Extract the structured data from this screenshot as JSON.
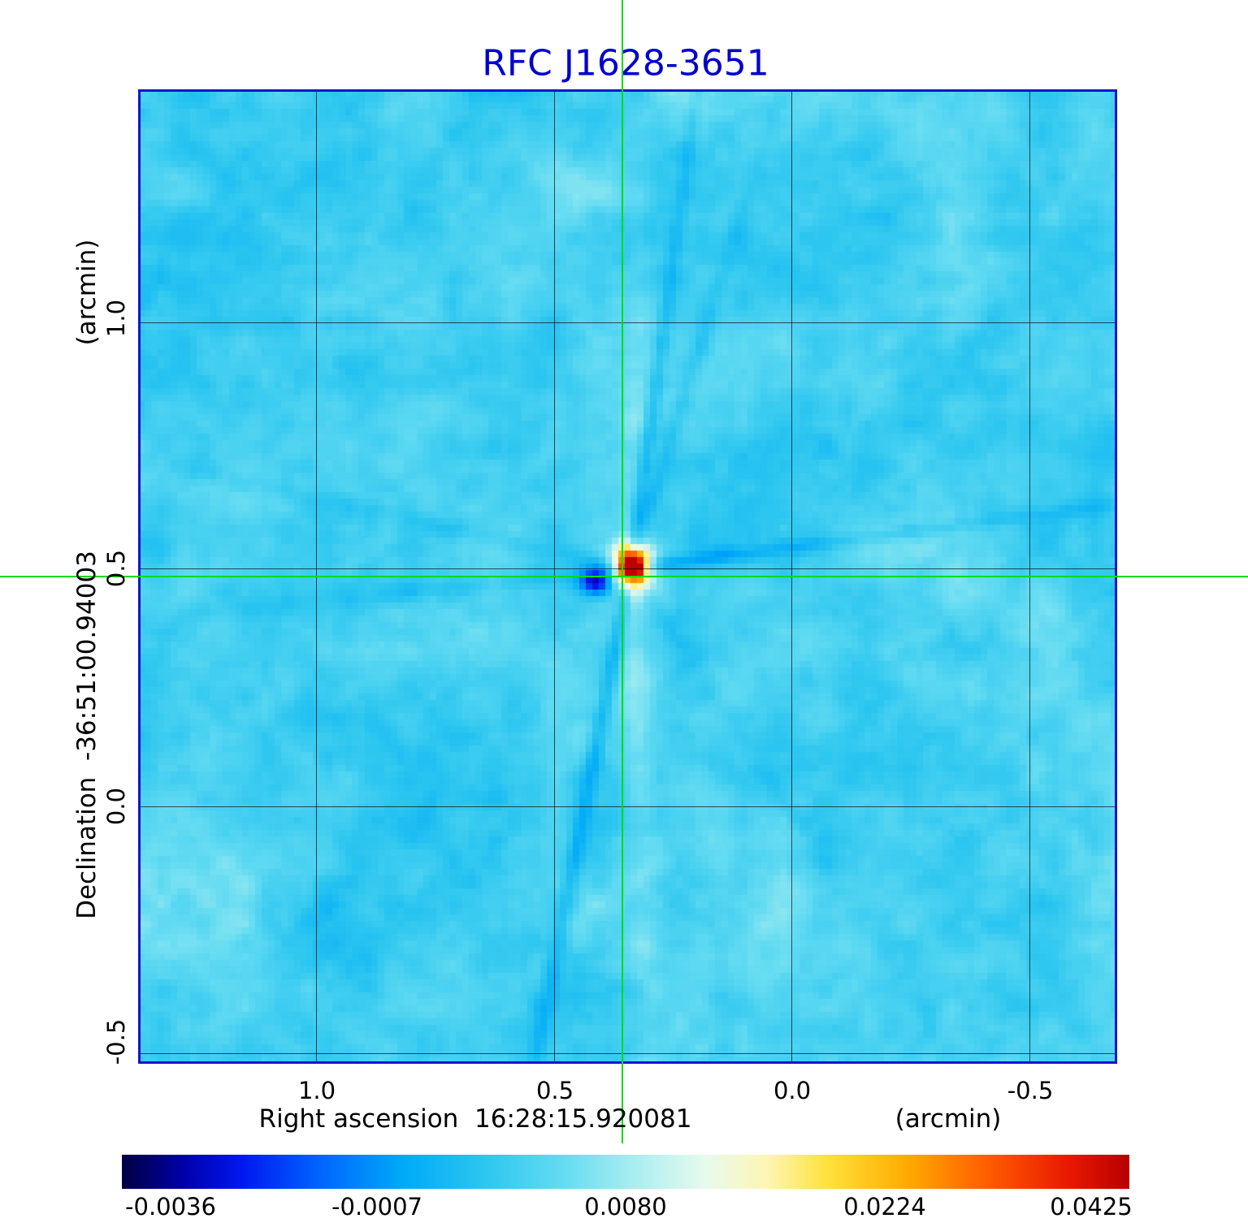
{
  "title": {
    "text": "RFC J1628-3651",
    "color": "#0000cd"
  },
  "axes": {
    "y_unit": "(arcmin)",
    "y_title": "Declination  -36:51:00.94003",
    "y_ticks": [
      "1.0",
      "0.5",
      "0.0",
      "-0.5"
    ],
    "x_title": "Right ascension  16:28:15.920081",
    "x_unit": "(arcmin)",
    "x_ticks": [
      "1.0",
      "0.5",
      "0.0",
      "-0.5"
    ]
  },
  "colorbar": {
    "tick_labels": [
      "-0.0036",
      "-0.0007",
      "0.0080",
      "0.0224",
      "0.0425"
    ]
  },
  "chart_data": {
    "type": "heatmap",
    "title": "RFC J1628-3651",
    "xlabel": "Right ascension 16:28:15.920081 (arcmin)",
    "ylabel": "Declination -36:51:00.94003 (arcmin)",
    "x_ticks_arcmin": [
      1.0,
      0.5,
      0.0,
      -0.5
    ],
    "y_ticks_arcmin": [
      1.0,
      0.5,
      0.0,
      -0.5
    ],
    "x_range_arcmin": [
      1.38,
      -0.68
    ],
    "y_range_arcmin": [
      -0.52,
      1.49
    ],
    "grid": true,
    "crosshair_arcmin": {
      "x": 0.36,
      "y": 0.48
    },
    "intensity_scale": {
      "min": -0.0036,
      "max": 0.0425,
      "colorbar_ticks": [
        -0.0036,
        -0.0007,
        0.008,
        0.0224,
        0.0425
      ]
    },
    "features": {
      "peak_source": {
        "x_arcmin": 0.35,
        "y_arcmin": 0.5,
        "value": 0.0425
      },
      "negative_sidelobe": {
        "x_arcmin": 0.42,
        "y_arcmin": 0.46,
        "value": -0.0036
      },
      "background_level": 0.0,
      "description": "VLBI dirty-map style image: cyan noise background, bright compact source at crosshair with yellow/white halo, dark-blue negative sidelobe left of source, faint dark sidelobe rays radiating from source"
    },
    "colormap_stops": [
      {
        "pos": 0.0,
        "color": "#000040"
      },
      {
        "pos": 0.06,
        "color": "#0000a8"
      },
      {
        "pos": 0.12,
        "color": "#0018f0"
      },
      {
        "pos": 0.2,
        "color": "#0068ff"
      },
      {
        "pos": 0.28,
        "color": "#00aaf8"
      },
      {
        "pos": 0.36,
        "color": "#2cc6f0"
      },
      {
        "pos": 0.44,
        "color": "#66dcf2"
      },
      {
        "pos": 0.52,
        "color": "#b4f0f0"
      },
      {
        "pos": 0.58,
        "color": "#e8faee"
      },
      {
        "pos": 0.64,
        "color": "#fdf6b4"
      },
      {
        "pos": 0.7,
        "color": "#ffe23c"
      },
      {
        "pos": 0.78,
        "color": "#ffaa00"
      },
      {
        "pos": 0.86,
        "color": "#ff5c00"
      },
      {
        "pos": 0.94,
        "color": "#e81800"
      },
      {
        "pos": 1.0,
        "color": "#b80000"
      }
    ]
  }
}
